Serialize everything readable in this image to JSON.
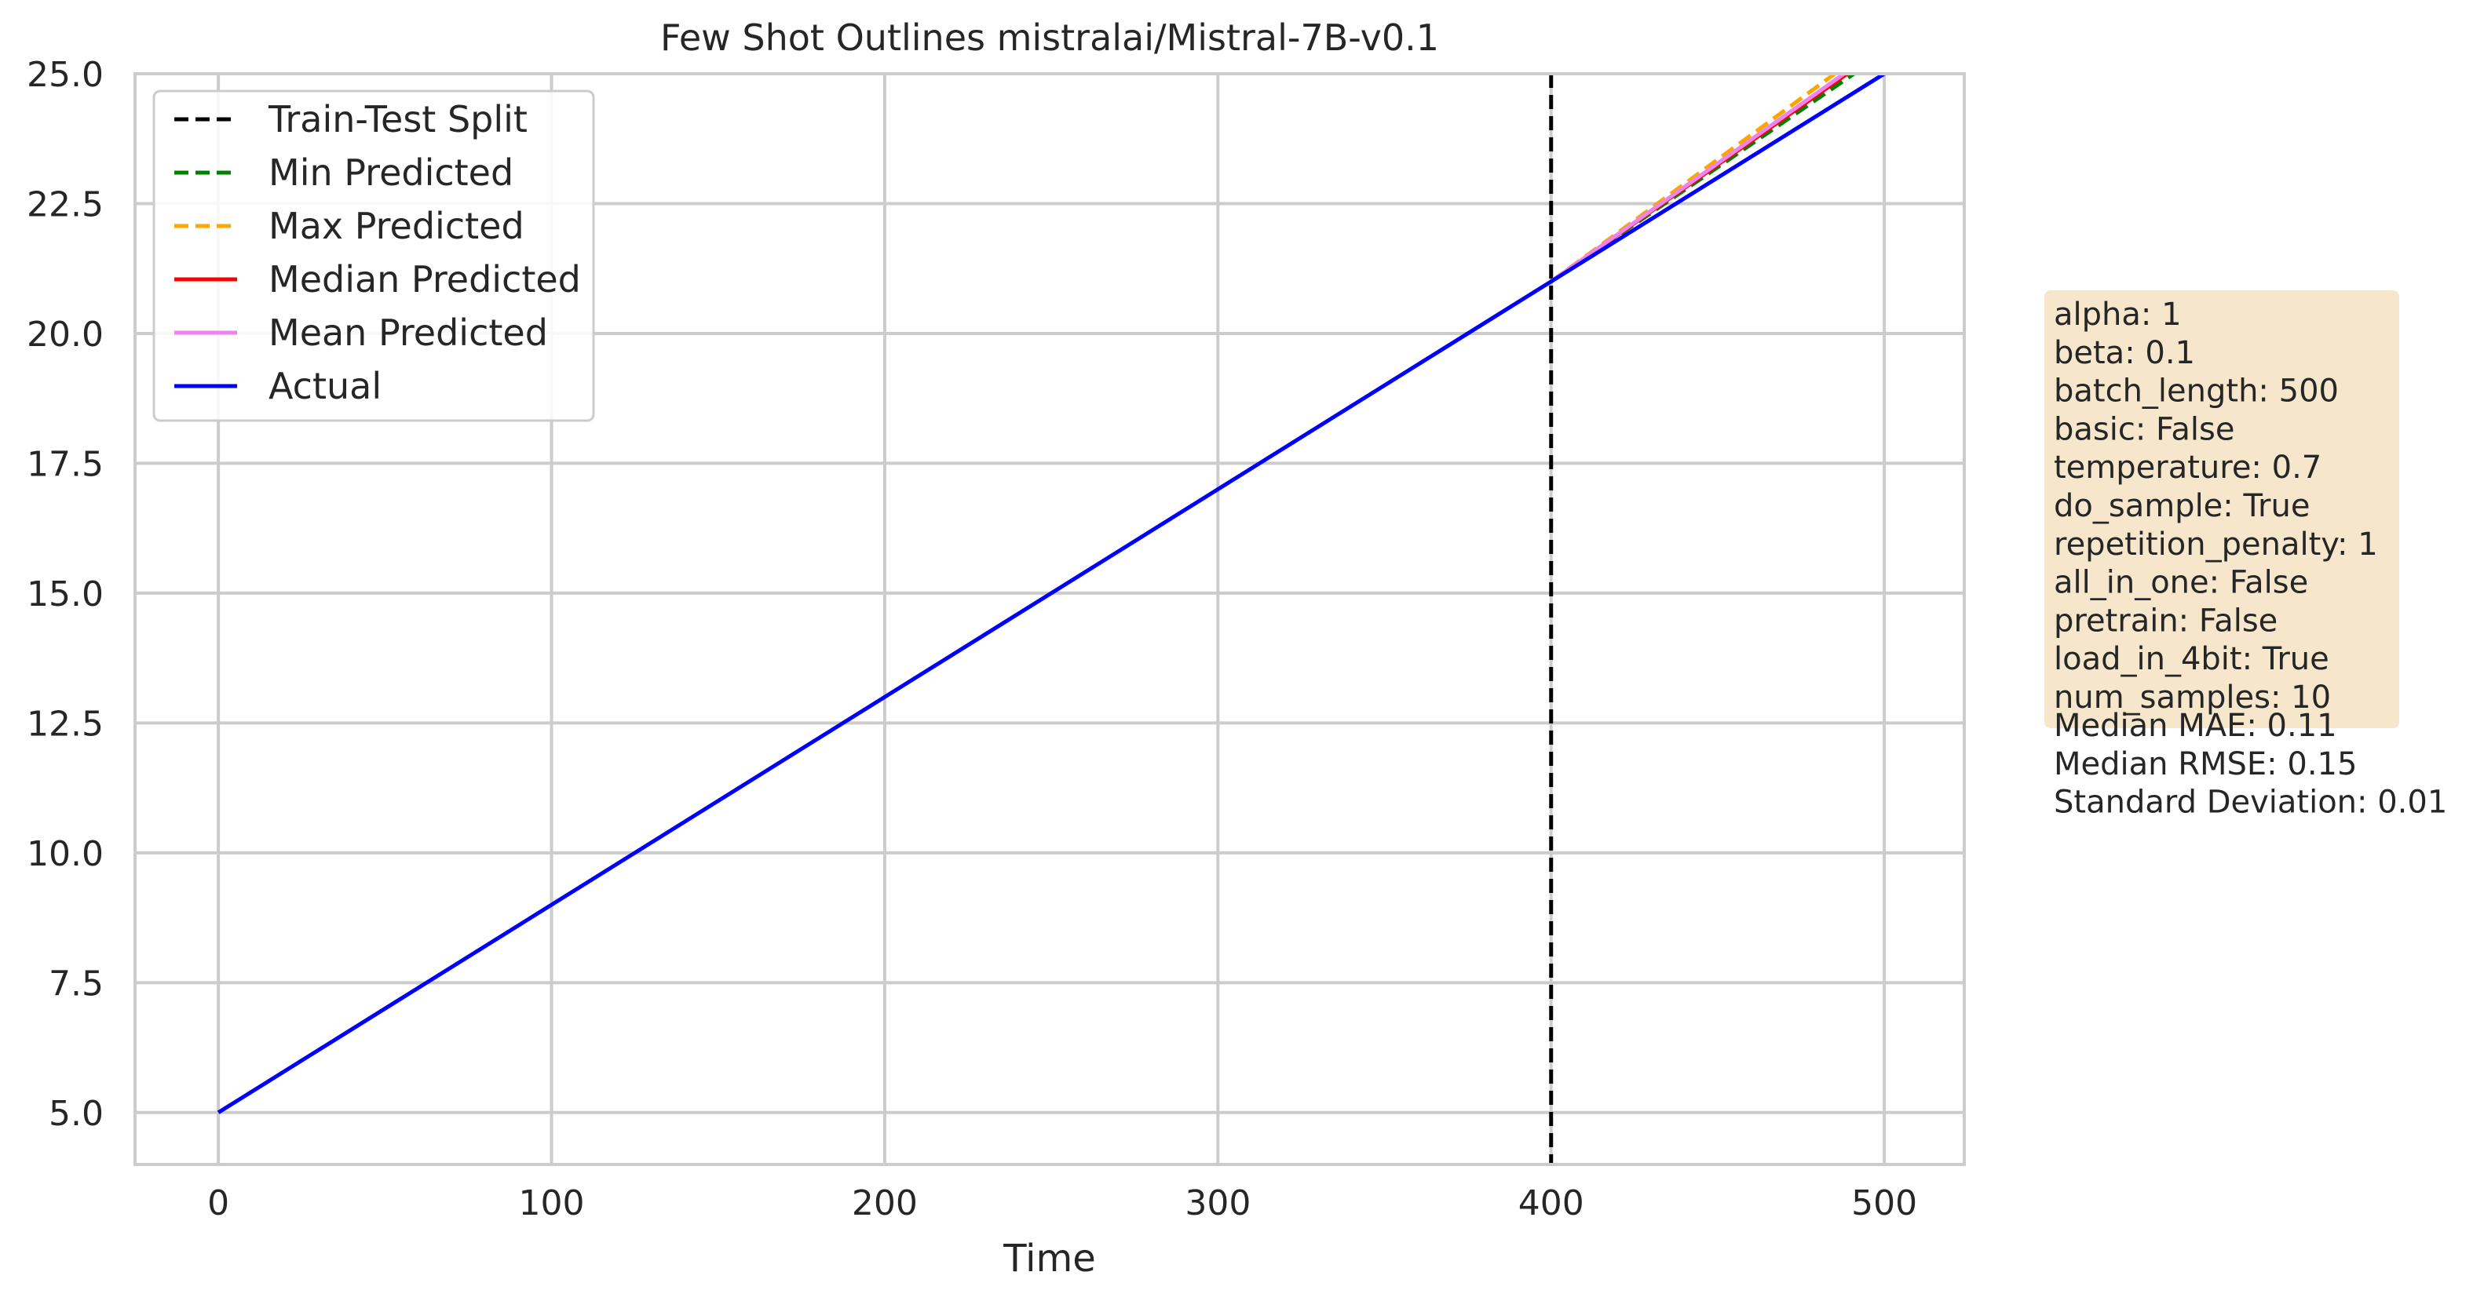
{
  "chart_data": {
    "type": "line",
    "title": "Few Shot Outlines mistralai/Mistral-7B-v0.1",
    "xlabel": "Time",
    "ylabel": "",
    "xlim": [
      -25,
      524
    ],
    "ylim": [
      4.0,
      25.0
    ],
    "x_ticks": [
      0,
      100,
      200,
      300,
      400,
      500
    ],
    "x_tick_labels": [
      "0",
      "100",
      "200",
      "300",
      "400",
      "500"
    ],
    "y_ticks": [
      5.0,
      7.5,
      10.0,
      12.5,
      15.0,
      17.5,
      20.0,
      22.5,
      25.0
    ],
    "y_tick_labels": [
      "5.0",
      "7.5",
      "10.0",
      "12.5",
      "15.0",
      "17.5",
      "20.0",
      "22.5",
      "25.0"
    ],
    "grid": true,
    "legend_position": "upper-left",
    "split": {
      "name": "Train-Test Split",
      "x": 400,
      "color": "#000000",
      "dash": true
    },
    "series": [
      {
        "name": "Min Predicted",
        "color": "#008000",
        "dash": true,
        "x": [
          400,
          500
        ],
        "y": [
          21.0,
          25.4
        ]
      },
      {
        "name": "Max Predicted",
        "color": "#ffa500",
        "dash": true,
        "x": [
          400,
          500
        ],
        "y": [
          21.0,
          25.7
        ]
      },
      {
        "name": "Median Predicted",
        "color": "#ff0000",
        "dash": false,
        "x": [
          400,
          500
        ],
        "y": [
          21.0,
          25.5
        ]
      },
      {
        "name": "Mean Predicted",
        "color": "#ee82ee",
        "dash": false,
        "x": [
          400,
          500
        ],
        "y": [
          21.0,
          25.55
        ]
      },
      {
        "name": "Actual",
        "color": "#0000ff",
        "dash": false,
        "x": [
          0,
          500
        ],
        "y": [
          5.0,
          25.0
        ]
      }
    ],
    "legend": [
      "Train-Test Split",
      "Min Predicted",
      "Max Predicted",
      "Median Predicted",
      "Mean Predicted",
      "Actual"
    ],
    "info_box": {
      "lines": [
        "alpha: 1",
        "beta: 0.1",
        "batch_length: 500",
        "basic: False",
        "temperature: 0.7",
        "do_sample: True",
        "repetition_penalty: 1",
        "all_in_one: False",
        "pretrain: False",
        "load_in_4bit: True",
        "num_samples: 10"
      ],
      "background": "#f5e6cc"
    },
    "metrics": [
      "Median MAE: 0.11",
      "Median RMSE: 0.15",
      "Standard Deviation: 0.01"
    ]
  }
}
